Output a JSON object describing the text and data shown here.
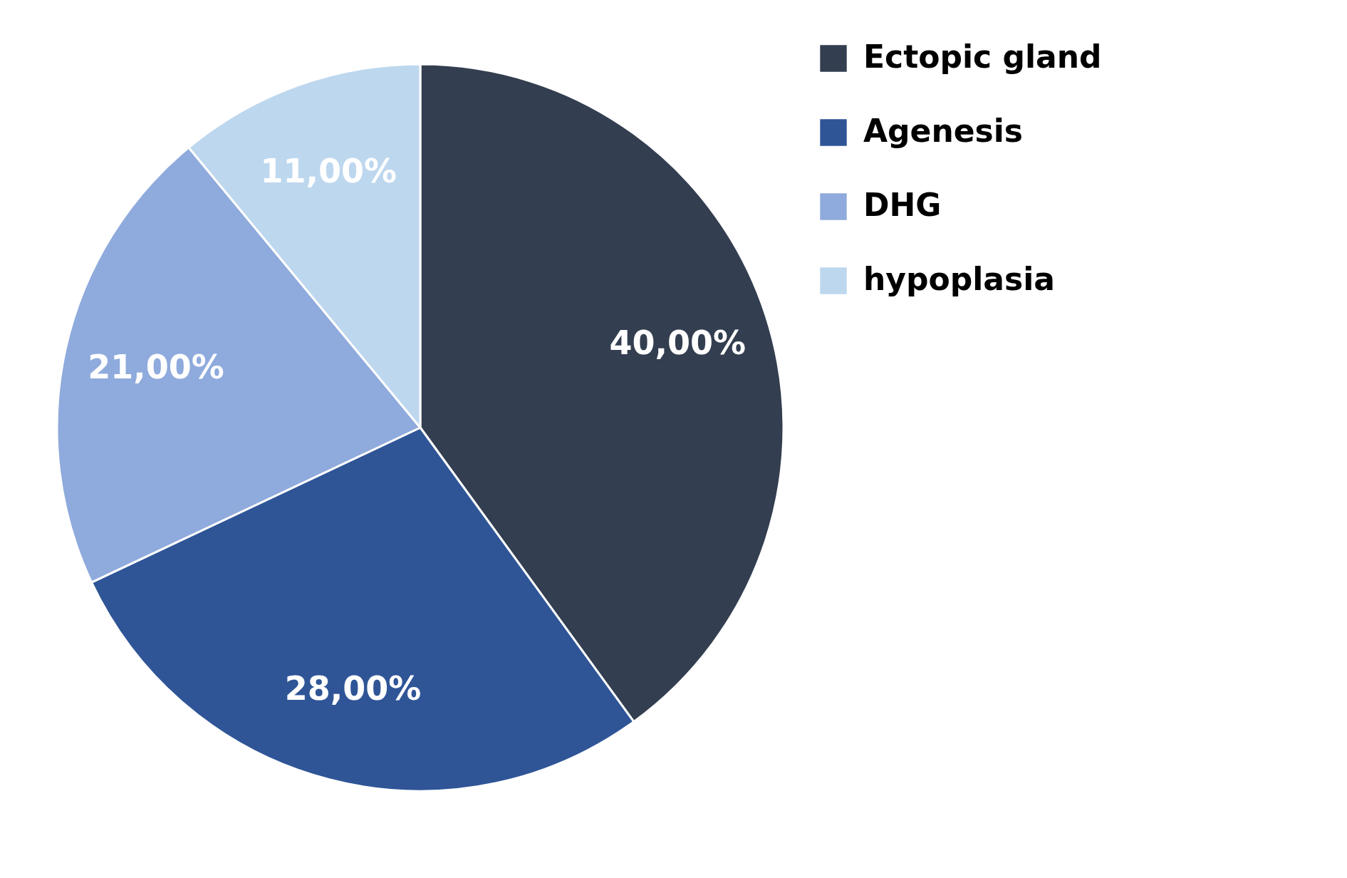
{
  "chart_data": {
    "type": "pie",
    "categories": [
      "Ectopic gland",
      "Agenesis",
      "DHG",
      "hypoplasia"
    ],
    "values": [
      40,
      28,
      21,
      11
    ],
    "colors": [
      "#333e50",
      "#2f5597",
      "#8faadc",
      "#bdd7ee"
    ],
    "value_labels": [
      "40,00%",
      "28,00%",
      "21,00%",
      "11,00%"
    ],
    "legend": "right"
  }
}
